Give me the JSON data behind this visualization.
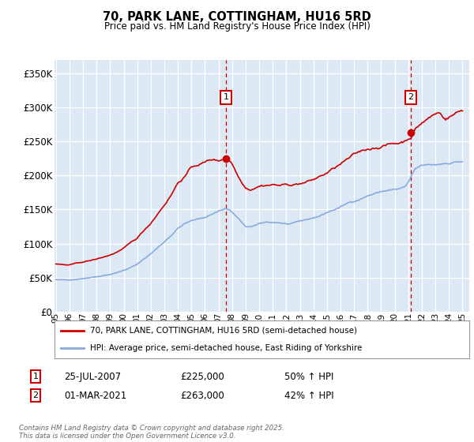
{
  "title": "70, PARK LANE, COTTINGHAM, HU16 5RD",
  "subtitle": "Price paid vs. HM Land Registry's House Price Index (HPI)",
  "background_color": "#ffffff",
  "plot_bg_color": "#dce9f5",
  "ylim": [
    0,
    370000
  ],
  "yticks": [
    0,
    50000,
    100000,
    150000,
    200000,
    250000,
    300000,
    350000
  ],
  "xlim_start": 1994.9,
  "xlim_end": 2025.5,
  "xtick_years": [
    1995,
    1996,
    1997,
    1998,
    1999,
    2000,
    2001,
    2002,
    2003,
    2004,
    2005,
    2006,
    2007,
    2008,
    2009,
    2010,
    2011,
    2012,
    2013,
    2014,
    2015,
    2016,
    2017,
    2018,
    2019,
    2020,
    2021,
    2022,
    2023,
    2024,
    2025
  ],
  "line1_color": "#cc0000",
  "line2_color": "#88aadd",
  "line1_label": "70, PARK LANE, COTTINGHAM, HU16 5RD (semi-detached house)",
  "line2_label": "HPI: Average price, semi-detached house, East Riding of Yorkshire",
  "marker1_date": 2007.56,
  "marker1_value": 225000,
  "marker1_label": "1",
  "marker2_date": 2021.17,
  "marker2_value": 263000,
  "marker2_label": "2",
  "sale1_date": "25-JUL-2007",
  "sale1_price": "£225,000",
  "sale1_pct": "50% ↑ HPI",
  "sale2_date": "01-MAR-2021",
  "sale2_price": "£263,000",
  "sale2_pct": "42% ↑ HPI",
  "footer": "Contains HM Land Registry data © Crown copyright and database right 2025.\nThis data is licensed under the Open Government Licence v3.0."
}
